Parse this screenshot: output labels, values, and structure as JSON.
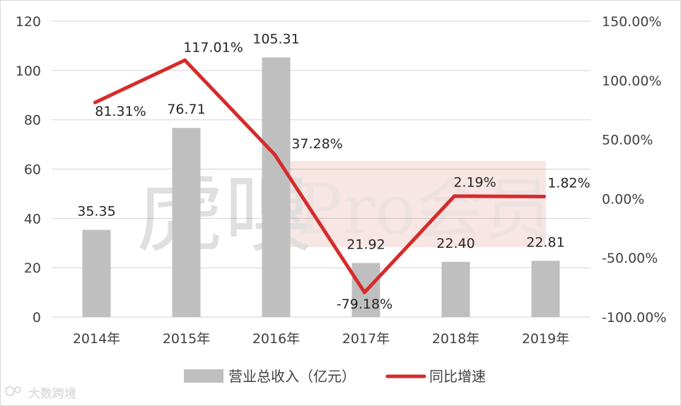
{
  "chart_data": {
    "type": "bar+line",
    "categories": [
      "2014年",
      "2015年",
      "2016年",
      "2017年",
      "2018年",
      "2019年"
    ],
    "series": [
      {
        "name": "营业总收入（亿元）",
        "type": "bar",
        "axis": "left",
        "values": [
          35.35,
          76.71,
          105.31,
          21.92,
          22.4,
          22.81
        ],
        "labels": [
          "35.35",
          "76.71",
          "105.31",
          "21.92",
          "22.40",
          "22.81"
        ],
        "color": "#bfbfbf"
      },
      {
        "name": "同比增速",
        "type": "line",
        "axis": "right",
        "values": [
          81.31,
          117.01,
          37.28,
          -79.18,
          2.19,
          1.82
        ],
        "labels": [
          "81.31%",
          "117.01%",
          "37.28%",
          "-79.18%",
          "2.19%",
          "1.82%"
        ],
        "color": "#d62b2b"
      }
    ],
    "y_left": {
      "min": 0,
      "max": 120,
      "ticks": [
        "0",
        "20",
        "40",
        "60",
        "80",
        "100",
        "120"
      ]
    },
    "y_right": {
      "min": -100,
      "max": 150,
      "ticks": [
        "-100.00%",
        "-50.00%",
        "0.00%",
        "50.00%",
        "100.00%",
        "150.00%"
      ]
    },
    "grid": true,
    "legend_position": "bottom"
  },
  "watermark": {
    "text_cn": "虎嗅",
    "text_pro": "Pro会员"
  },
  "corner_logo": {
    "text": "大数跨境"
  }
}
